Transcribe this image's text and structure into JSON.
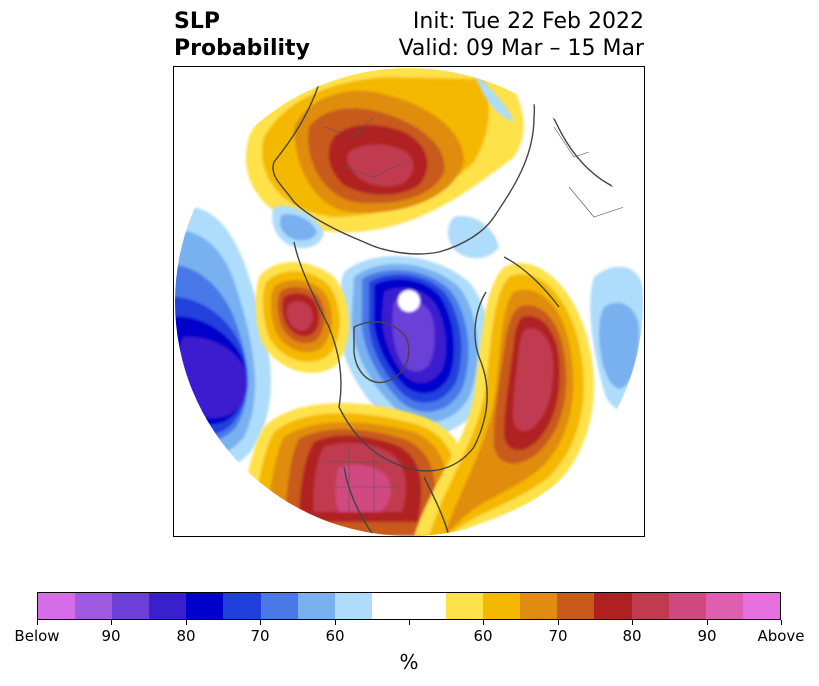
{
  "title": {
    "left_line1": "SLP",
    "left_line2": "Probability",
    "right_line1": "Init: Tue 22 Feb 2022",
    "right_line2": "Valid: 09 Mar – 15 Mar"
  },
  "map": {
    "projection": "north-polar-stereographic",
    "variable": "SLP probability"
  },
  "colorbar": {
    "label": "%",
    "colors": [
      "#d56ee6",
      "#a05ae0",
      "#6b3fd8",
      "#3a1fcf",
      "#0000cc",
      "#2040dd",
      "#4a78e8",
      "#78b0f0",
      "#aedcfb",
      "#ffffff",
      "#ffffff",
      "#ffe14a",
      "#f5b800",
      "#e08c10",
      "#c85a1a",
      "#b02020",
      "#c03a50",
      "#d04a80",
      "#dd60b0",
      "#e670e0"
    ],
    "ticks": [
      "Below",
      "90",
      "80",
      "70",
      "60",
      "",
      "60",
      "70",
      "80",
      "90",
      "Above"
    ]
  }
}
